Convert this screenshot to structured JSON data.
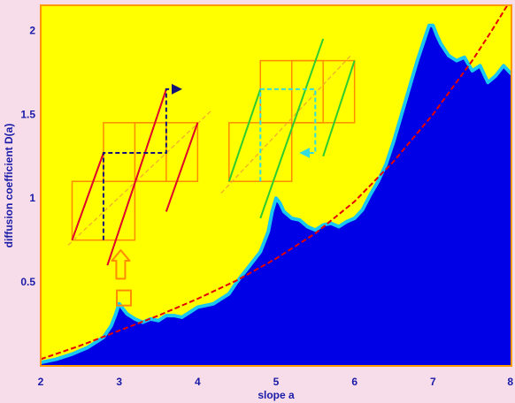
{
  "chart_data": {
    "type": "area",
    "title": "",
    "xlabel": "slope a",
    "ylabel": "diffusion coefficient D(a)",
    "xlim": [
      2,
      8
    ],
    "ylim": [
      0,
      2.15
    ],
    "x_ticks": [
      "2",
      "3",
      "4",
      "5",
      "6",
      "7",
      "8"
    ],
    "y_ticks": [
      "0.5",
      "1",
      "1.5",
      "2"
    ],
    "grid": false,
    "series": [
      {
        "style": "filled-area",
        "color": "#0000e6",
        "outline_color": "#19c8f0",
        "x": [
          2.0,
          2.2,
          2.4,
          2.6,
          2.8,
          2.9,
          2.95,
          3.0,
          3.05,
          3.1,
          3.2,
          3.3,
          3.4,
          3.5,
          3.6,
          3.7,
          3.8,
          3.9,
          4.0,
          4.1,
          4.2,
          4.3,
          4.4,
          4.5,
          4.6,
          4.7,
          4.8,
          4.9,
          4.95,
          5.0,
          5.05,
          5.1,
          5.2,
          5.3,
          5.4,
          5.5,
          5.6,
          5.7,
          5.8,
          5.9,
          6.0,
          6.1,
          6.2,
          6.3,
          6.4,
          6.5,
          6.6,
          6.7,
          6.8,
          6.9,
          6.95,
          7.0,
          7.05,
          7.1,
          7.2,
          7.3,
          7.4,
          7.5,
          7.6,
          7.7,
          7.8,
          7.9,
          8.0
        ],
        "y": [
          0.02,
          0.04,
          0.07,
          0.11,
          0.17,
          0.24,
          0.3,
          0.37,
          0.34,
          0.31,
          0.28,
          0.26,
          0.28,
          0.27,
          0.3,
          0.3,
          0.29,
          0.32,
          0.35,
          0.36,
          0.37,
          0.4,
          0.43,
          0.5,
          0.56,
          0.62,
          0.68,
          0.8,
          0.92,
          1.0,
          0.97,
          0.92,
          0.88,
          0.87,
          0.83,
          0.81,
          0.84,
          0.85,
          0.83,
          0.86,
          0.88,
          0.93,
          1.02,
          1.1,
          1.2,
          1.34,
          1.5,
          1.66,
          1.82,
          1.96,
          2.03,
          2.03,
          1.97,
          1.92,
          1.85,
          1.82,
          1.84,
          1.76,
          1.79,
          1.69,
          1.73,
          1.79,
          1.74
        ]
      },
      {
        "style": "dashed-line",
        "color": "#e60000",
        "x": [
          2.0,
          2.5,
          3.0,
          3.5,
          4.0,
          4.5,
          5.0,
          5.5,
          6.0,
          6.5,
          7.0,
          7.5,
          7.75,
          8.0
        ],
        "y": [
          0.04,
          0.12,
          0.21,
          0.3,
          0.4,
          0.51,
          0.64,
          0.79,
          0.98,
          1.22,
          1.5,
          1.82,
          2.0,
          2.19
        ]
      }
    ],
    "annotations": {
      "highlight_box": {
        "x": [
          2.97,
          3.15
        ],
        "y": [
          0.36,
          0.45
        ]
      },
      "up_arrow": {
        "x": 3.02,
        "y": [
          0.52,
          0.69
        ]
      },
      "insets": [
        {
          "name": "left-map-inset",
          "frame_boxes": [
            {
              "x": [
                2.4,
                3.2
              ],
              "y": [
                0.75,
                1.1
              ]
            },
            {
              "x": [
                2.8,
                3.6
              ],
              "y": [
                1.1,
                1.45
              ]
            },
            {
              "x": [
                3.2,
                4.0
              ],
              "y": [
                1.1,
                1.45
              ]
            }
          ],
          "diagonal": {
            "x": [
              2.35,
              4.17
            ],
            "y": [
              0.72,
              1.52
            ]
          },
          "branches": [
            {
              "x": [
                2.4,
                2.8
              ],
              "y": [
                0.75,
                1.27
              ]
            },
            {
              "x": [
                2.85,
                3.6
              ],
              "y": [
                0.6,
                1.65
              ]
            },
            {
              "x": [
                3.6,
                4.0
              ],
              "y": [
                0.92,
                1.45
              ]
            }
          ],
          "branch_color": "#e0002a",
          "orbit": {
            "x": [
              2.8,
              2.8,
              3.6,
              3.6,
              3.75
            ],
            "y": [
              0.75,
              1.27,
              1.27,
              1.65,
              1.65
            ]
          },
          "orbit_color": "#141478"
        },
        {
          "name": "right-map-inset",
          "frame_boxes": [
            {
              "x": [
                4.4,
                5.2
              ],
              "y": [
                1.1,
                1.45
              ]
            },
            {
              "x": [
                4.8,
                5.6
              ],
              "y": [
                1.45,
                1.82
              ]
            },
            {
              "x": [
                5.2,
                6.0
              ],
              "y": [
                1.45,
                1.82
              ]
            }
          ],
          "diagonal": {
            "x": [
              4.3,
              5.95
            ],
            "y": [
              1.03,
              1.85
            ]
          },
          "branches": [
            {
              "x": [
                4.4,
                4.8
              ],
              "y": [
                1.1,
                1.65
              ]
            },
            {
              "x": [
                4.8,
                5.6
              ],
              "y": [
                0.88,
                1.95
              ]
            },
            {
              "x": [
                5.6,
                6.0
              ],
              "y": [
                1.25,
                1.82
              ]
            }
          ],
          "branch_color": "#2ecc2e",
          "orbit": {
            "x": [
              4.8,
              4.8,
              5.5,
              5.5,
              5.35
            ],
            "y": [
              1.1,
              1.65,
              1.65,
              1.27,
              1.27
            ]
          },
          "orbit_color": "#33dddd"
        }
      ]
    }
  },
  "colors": {
    "page_background": "#f7dde9",
    "plot_background": "#ffff00",
    "axis_frame": "#ff9900",
    "inset_frame": "#ff8c00",
    "inset_diagonal": "#f0a830",
    "tick_text": "#1a1aa8"
  }
}
